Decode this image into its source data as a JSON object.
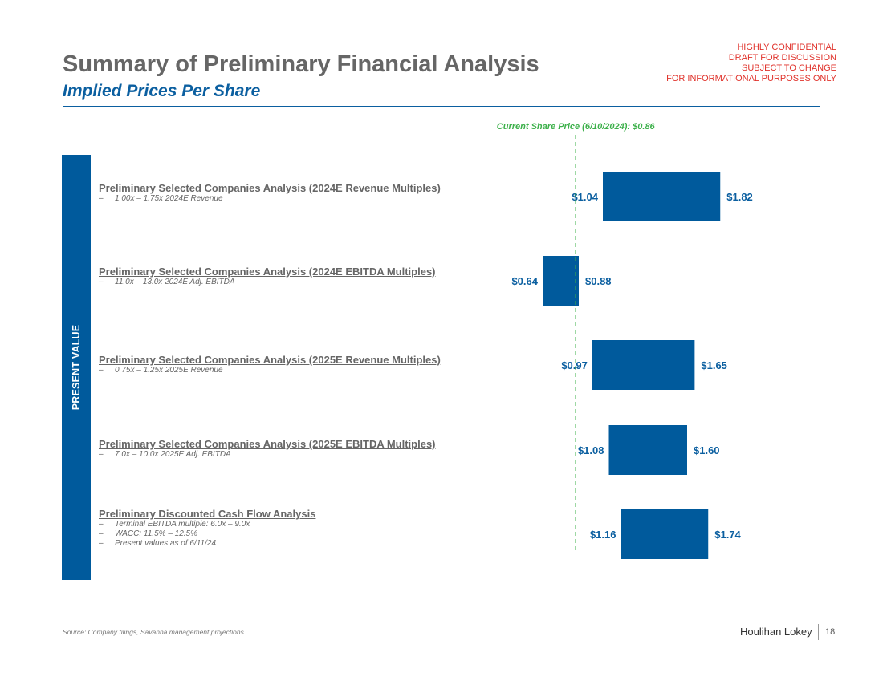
{
  "header": {
    "title": "Summary of Preliminary Financial Analysis",
    "subtitle": "Implied Prices Per Share",
    "confidential": [
      "HIGHLY CONFIDENTIAL",
      "DRAFT FOR DISCUSSION",
      "SUBJECT TO CHANGE",
      "FOR INFORMATIONAL PURPOSES ONLY"
    ]
  },
  "side_label": "PRESENT VALUE",
  "rows": [
    {
      "title": "Preliminary Selected Companies Analysis (2024E Revenue Multiples)",
      "subs": [
        "1.00x – 1.75x 2024E Revenue"
      ]
    },
    {
      "title": "Preliminary Selected Companies Analysis (2024E EBITDA Multiples)",
      "subs": [
        "11.0x – 13.0x 2024E Adj. EBITDA"
      ]
    },
    {
      "title": "Preliminary Selected Companies Analysis (2025E Revenue Multiples)",
      "subs": [
        "0.75x – 1.25x 2025E Revenue"
      ]
    },
    {
      "title": "Preliminary Selected Companies Analysis (2025E EBITDA Multiples)",
      "subs": [
        "7.0x – 10.0x 2025E Adj. EBITDA"
      ]
    },
    {
      "title": "Preliminary Discounted Cash Flow Analysis",
      "subs": [
        "Terminal EBITDA multiple: 6.0x – 9.0x",
        "WACC: 11.5% – 12.5%",
        "Present values as of 6/11/24"
      ]
    }
  ],
  "dash": "–",
  "chart_data": {
    "type": "bar",
    "orientation": "horizontal-range",
    "categories": [
      "Preliminary Selected Companies Analysis (2024E Revenue Multiples)",
      "Preliminary Selected Companies Analysis (2024E EBITDA Multiples)",
      "Preliminary Selected Companies Analysis (2025E Revenue Multiples)",
      "Preliminary Selected Companies Analysis (2025E EBITDA Multiples)",
      "Preliminary Discounted Cash Flow Analysis"
    ],
    "series": [
      {
        "name": "Low",
        "values": [
          1.04,
          0.64,
          0.97,
          1.08,
          1.16
        ]
      },
      {
        "name": "High",
        "values": [
          1.82,
          0.88,
          1.65,
          1.6,
          1.74
        ]
      }
    ],
    "low_labels": [
      "$1.04",
      "$0.64",
      "$0.97",
      "$1.08",
      "$1.16"
    ],
    "high_labels": [
      "$1.82",
      "$0.88",
      "$1.65",
      "$1.60",
      "$1.74"
    ],
    "reference_line": {
      "value": 0.86,
      "label": "Current Share Price (6/10/2024): $0.86"
    },
    "xlim": [
      0.5,
      2.0
    ],
    "bar_color": "#005a9c",
    "label_color": "#0b5fa0",
    "reference_color": "#3cb04a"
  },
  "footer": {
    "source": "Source: Company filings, Savanna management projections.",
    "brand": "Houlihan Lokey",
    "page": "18"
  }
}
